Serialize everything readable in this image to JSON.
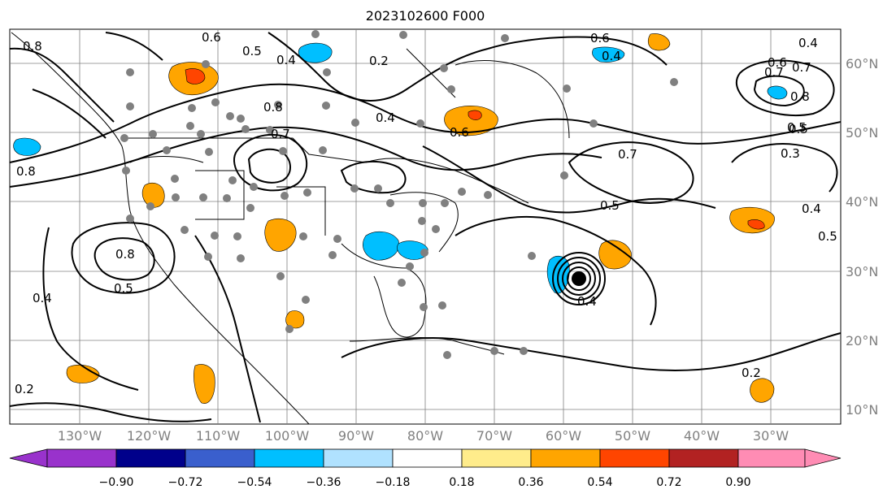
{
  "title": "2023102600 F000",
  "map": {
    "region": "North Atlantic / North America",
    "lon_labels": [
      "130°W",
      "120°W",
      "110°W",
      "100°W",
      "90°W",
      "80°W",
      "70°W",
      "60°W",
      "50°W",
      "40°W",
      "30°W"
    ],
    "lat_labels": [
      "60°N",
      "50°N",
      "40°N",
      "30°N",
      "20°N",
      "10°N"
    ],
    "contour_labels": [
      "0.2",
      "0.3",
      "0.4",
      "0.5",
      "0.6",
      "0.7",
      "0.8"
    ],
    "contour_labels_shown": [
      "0.6",
      "0.5",
      "0.4",
      "0.2",
      "0.8",
      "0.7",
      "0.6",
      "0.4",
      "0.8",
      "0.7",
      "0.8",
      "0.5",
      "0.4",
      "0.8",
      "0.5",
      "0.4",
      "0.6",
      "0.8",
      "0.7",
      "0.3",
      "0.5",
      "0.7",
      "0.4",
      "0.6",
      "0.5",
      "0.2",
      "0.2",
      "0.4",
      "0.5",
      "0.4"
    ],
    "colors": {
      "coast": "#000000",
      "grid": "#808080",
      "station_dot": "#808080"
    }
  },
  "colorbar": {
    "ticks": [
      "−0.90",
      "−0.72",
      "−0.54",
      "−0.36",
      "−0.18",
      "0.18",
      "0.36",
      "0.54",
      "0.72",
      "0.90"
    ],
    "bins": [
      "#9932cc",
      "#00008b",
      "#3a5fcd",
      "#00bfff",
      "#b0e2ff",
      "#ffffff",
      "#ffec8b",
      "#ffa500",
      "#ff4500",
      "#b22222",
      "#ff8cb4"
    ]
  }
}
